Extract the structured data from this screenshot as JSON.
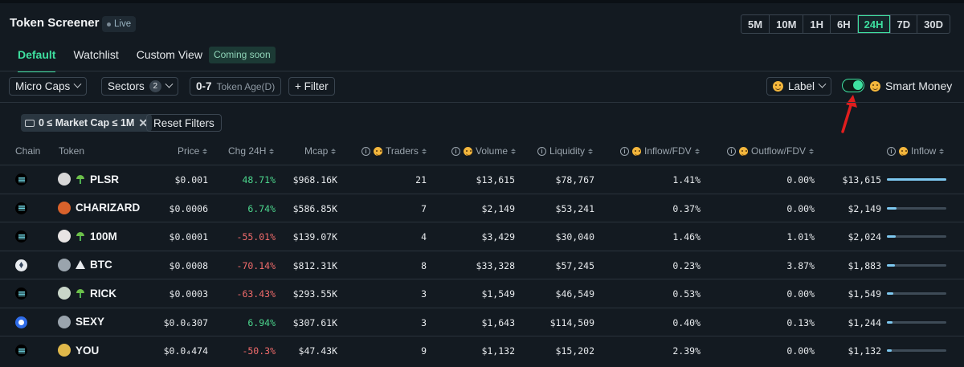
{
  "header": {
    "title": "Token Screener",
    "live_label": "Live",
    "timeframes": [
      "5M",
      "10M",
      "1H",
      "6H",
      "24H",
      "7D",
      "30D"
    ],
    "active_timeframe": "24H"
  },
  "tabs": {
    "items": [
      "Default",
      "Watchlist",
      "Custom View"
    ],
    "coming_soon": "Coming soon"
  },
  "filters": {
    "micro_caps": "Micro Caps",
    "sectors": "Sectors",
    "sectors_count": "2",
    "age_range": "0-7",
    "age_label": "Token Age(D)",
    "filter": "+ Filter",
    "label": "Label",
    "smart_money": "Smart Money",
    "active_chip": "0 ≤ Market Cap ≤ 1M",
    "reset": "Reset Filters"
  },
  "table": {
    "columns": [
      "Chain",
      "Token",
      "Price",
      "Chg 24H",
      "Mcap",
      "Traders",
      "Volume",
      "Liquidity",
      "Inflow/FDV",
      "Outflow/FDV",
      "Inflow"
    ],
    "rows": [
      {
        "chain": "sol",
        "token": "PLSR",
        "sprout": true,
        "price": "$0.001",
        "chg": "48.71%",
        "chg_dir": "pos",
        "mcap": "$968.16K",
        "traders": "21",
        "volume": "$13,615",
        "liquidity": "$78,767",
        "inflow_fdv": "1.41%",
        "outflow_fdv": "0.00%",
        "inflow": "$13,615",
        "inflow_pct": 100,
        "avatar": "#d7d7d7"
      },
      {
        "chain": "sol",
        "token": "CHARIZARD",
        "sprout": false,
        "price": "$0.0006",
        "chg": "6.74%",
        "chg_dir": "pos",
        "mcap": "$586.85K",
        "traders": "7",
        "volume": "$2,149",
        "liquidity": "$53,241",
        "inflow_fdv": "0.37%",
        "outflow_fdv": "0.00%",
        "inflow": "$2,149",
        "inflow_pct": 16,
        "avatar": "#d9622b"
      },
      {
        "chain": "sol",
        "token": "100M",
        "sprout": true,
        "price": "$0.0001",
        "chg": "-55.01%",
        "chg_dir": "neg",
        "mcap": "$139.07K",
        "traders": "4",
        "volume": "$3,429",
        "liquidity": "$30,040",
        "inflow_fdv": "1.46%",
        "outflow_fdv": "1.01%",
        "inflow": "$2,024",
        "inflow_pct": 15,
        "avatar": "#e8e4e4"
      },
      {
        "chain": "eth",
        "token": "BTC",
        "warn": true,
        "price": "$0.0008",
        "chg": "-70.14%",
        "chg_dir": "neg",
        "mcap": "$812.31K",
        "traders": "8",
        "volume": "$33,328",
        "liquidity": "$57,245",
        "inflow_fdv": "0.23%",
        "outflow_fdv": "3.87%",
        "inflow": "$1,883",
        "inflow_pct": 14,
        "avatar": "#9aa4ad"
      },
      {
        "chain": "sol",
        "token": "RICK",
        "sprout": true,
        "price": "$0.0003",
        "chg": "-63.43%",
        "chg_dir": "neg",
        "mcap": "$293.55K",
        "traders": "3",
        "volume": "$1,549",
        "liquidity": "$46,549",
        "inflow_fdv": "0.53%",
        "outflow_fdv": "0.00%",
        "inflow": "$1,549",
        "inflow_pct": 11,
        "avatar": "#c9d6c9"
      },
      {
        "chain": "base",
        "token": "SEXY",
        "sprout": false,
        "price": "$0.0₆307",
        "chg": "6.94%",
        "chg_dir": "pos",
        "mcap": "$307.61K",
        "traders": "3",
        "volume": "$1,643",
        "liquidity": "$114,509",
        "inflow_fdv": "0.40%",
        "outflow_fdv": "0.13%",
        "inflow": "$1,244",
        "inflow_pct": 9,
        "avatar": "#9aa4ad"
      },
      {
        "chain": "sol",
        "token": "YOU",
        "sprout": false,
        "price": "$0.0₄474",
        "chg": "-50.3%",
        "chg_dir": "neg",
        "mcap": "$47.43K",
        "traders": "9",
        "volume": "$1,132",
        "liquidity": "$15,202",
        "inflow_fdv": "2.39%",
        "outflow_fdv": "0.00%",
        "inflow": "$1,132",
        "inflow_pct": 8,
        "avatar": "#e0b84a"
      }
    ]
  },
  "colors": {
    "accent": "#3ee0a0",
    "positive": "#4cd68d",
    "negative": "#f06b6b",
    "arrow": "#e01e1e"
  }
}
